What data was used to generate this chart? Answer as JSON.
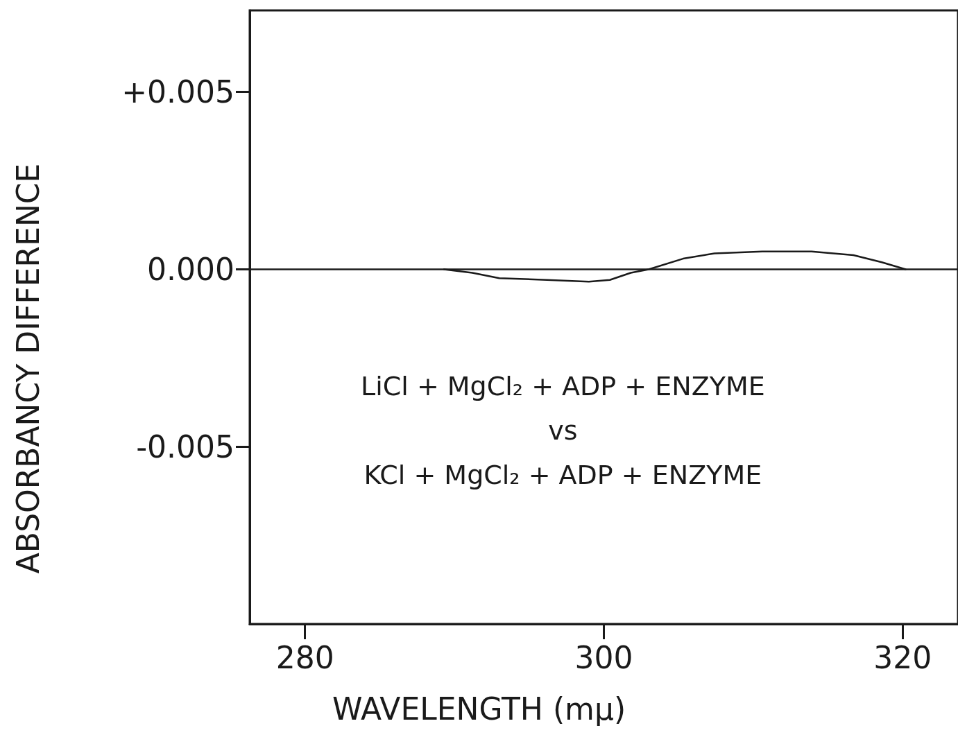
{
  "chart_data": {
    "type": "line",
    "xlabel": "WAVELENGTH (mμ)",
    "ylabel": "ABSORBANCY DIFFERENCE",
    "xlim": [
      276.3,
      323.7
    ],
    "ylim": [
      -0.01,
      0.0073
    ],
    "xticks": [
      280,
      300,
      320
    ],
    "yticks": [
      {
        "value": 0.005,
        "label": "+0.005"
      },
      {
        "value": 0,
        "label": "0.000"
      },
      {
        "value": -0.005,
        "label": "-0.005"
      }
    ],
    "grid": false,
    "ref_lines": [
      {
        "axis": "y",
        "value": 0
      }
    ],
    "marker": "none",
    "line_style": "solid",
    "annotations": [
      "LiCl + MgCl₂ + ADP + ENZYME\nvs\nKCl + MgCl₂ + ADP + ENZYME"
    ],
    "series": [
      {
        "color": "#1a1a1a",
        "x": [
          289.3,
          291.2,
          293,
          296.2,
          299,
          300.4,
          301.8,
          303,
          305.3,
          307.4,
          310.6,
          313.9,
          316.7,
          318.6,
          320.2
        ],
        "values": [
          0,
          -0.0001,
          -0.00025,
          -0.0003,
          -0.00035,
          -0.0003,
          -0.0001,
          0,
          0.0003,
          0.00045,
          0.0005,
          0.0005,
          0.0004,
          0.0002,
          0
        ]
      }
    ]
  }
}
